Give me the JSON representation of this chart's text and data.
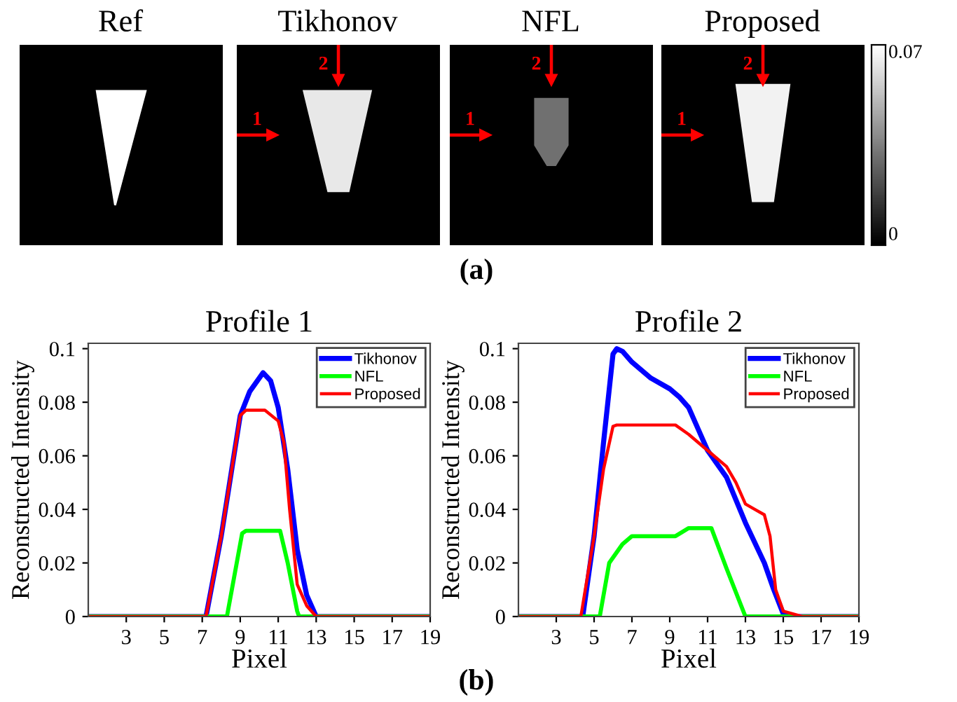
{
  "chart_data": [
    {
      "type": "other",
      "annotations": [
        "Ref",
        "Tikhonov",
        "NFL",
        "Proposed",
        "1",
        "2",
        "1",
        "2",
        "1",
        "2",
        "0.07",
        "0",
        "(a)"
      ]
    },
    {
      "type": "line",
      "title": "Profile 1",
      "xlabel": "Pixel",
      "ylabel": "Reconstructed Intensity",
      "xlim": [
        1,
        19
      ],
      "xticks": [
        3,
        5,
        7,
        9,
        11,
        13,
        15,
        17,
        19
      ],
      "ylim": [
        0,
        0.102
      ],
      "yticks": [
        0,
        0.02,
        0.04,
        0.06,
        0.08,
        0.1
      ],
      "grid": false,
      "legend": "top right",
      "marker": "none",
      "line_style": "solid",
      "series": [
        {
          "name": "Tikhonov",
          "color": "#0000ff",
          "x": [
            1,
            7.2,
            8,
            9,
            9.5,
            10.2,
            10.6,
            11,
            11.5,
            12,
            12.5,
            13,
            19
          ],
          "values": [
            0,
            0,
            0.03,
            0.075,
            0.084,
            0.091,
            0.088,
            0.078,
            0.055,
            0.025,
            0.008,
            0,
            0
          ]
        },
        {
          "name": "NFL",
          "color": "#00ff00",
          "x": [
            1,
            8.3,
            9.1,
            9.3,
            11.1,
            11.5,
            12,
            12.1,
            19
          ],
          "values": [
            0,
            0,
            0.031,
            0.032,
            0.032,
            0.02,
            0.002,
            0,
            0
          ]
        },
        {
          "name": "Proposed",
          "color": "#ff0000",
          "x": [
            1,
            7.2,
            8,
            9,
            9.3,
            10.3,
            11,
            11.3,
            11.6,
            12,
            12.5,
            13,
            19
          ],
          "values": [
            0,
            0,
            0.03,
            0.075,
            0.077,
            0.077,
            0.073,
            0.065,
            0.04,
            0.012,
            0.004,
            0,
            0
          ]
        }
      ]
    },
    {
      "type": "line",
      "title": "Profile 2",
      "xlabel": "Pixel",
      "ylabel": "Reconstructed Intensity",
      "xlim": [
        1,
        19
      ],
      "xticks": [
        3,
        5,
        7,
        9,
        11,
        13,
        15,
        17,
        19
      ],
      "ylim": [
        0,
        0.102
      ],
      "yticks": [
        0,
        0.02,
        0.04,
        0.06,
        0.08,
        0.1
      ],
      "grid": false,
      "legend": "top right",
      "marker": "none",
      "line_style": "solid",
      "annotations": [
        "(b)"
      ],
      "series": [
        {
          "name": "Tikhonov",
          "color": "#0000ff",
          "x": [
            1,
            4.4,
            5,
            5.5,
            6,
            6.2,
            6.5,
            7,
            8,
            9,
            9.5,
            10,
            10.5,
            11,
            12,
            13,
            14,
            14.5,
            15,
            15.5,
            19
          ],
          "values": [
            0,
            0,
            0.03,
            0.065,
            0.098,
            0.1,
            0.099,
            0.095,
            0.089,
            0.085,
            0.082,
            0.078,
            0.07,
            0.062,
            0.052,
            0.035,
            0.02,
            0.01,
            0.001,
            0,
            0
          ]
        },
        {
          "name": "NFL",
          "color": "#00ff00",
          "x": [
            1,
            5.3,
            5.8,
            6.5,
            7,
            9.3,
            10,
            11.2,
            12,
            13,
            19
          ],
          "values": [
            0,
            0,
            0.02,
            0.027,
            0.03,
            0.03,
            0.033,
            0.033,
            0.018,
            0,
            0
          ]
        },
        {
          "name": "Proposed",
          "color": "#ff0000",
          "x": [
            1,
            4.3,
            5,
            5.5,
            6,
            6.2,
            9.3,
            10,
            11,
            12,
            12.5,
            13,
            13.5,
            14,
            14.3,
            14.6,
            15,
            16,
            19
          ],
          "values": [
            0,
            0,
            0.03,
            0.055,
            0.071,
            0.0715,
            0.0715,
            0.068,
            0.062,
            0.056,
            0.05,
            0.042,
            0.04,
            0.038,
            0.03,
            0.01,
            0.002,
            0,
            0
          ]
        }
      ]
    }
  ]
}
